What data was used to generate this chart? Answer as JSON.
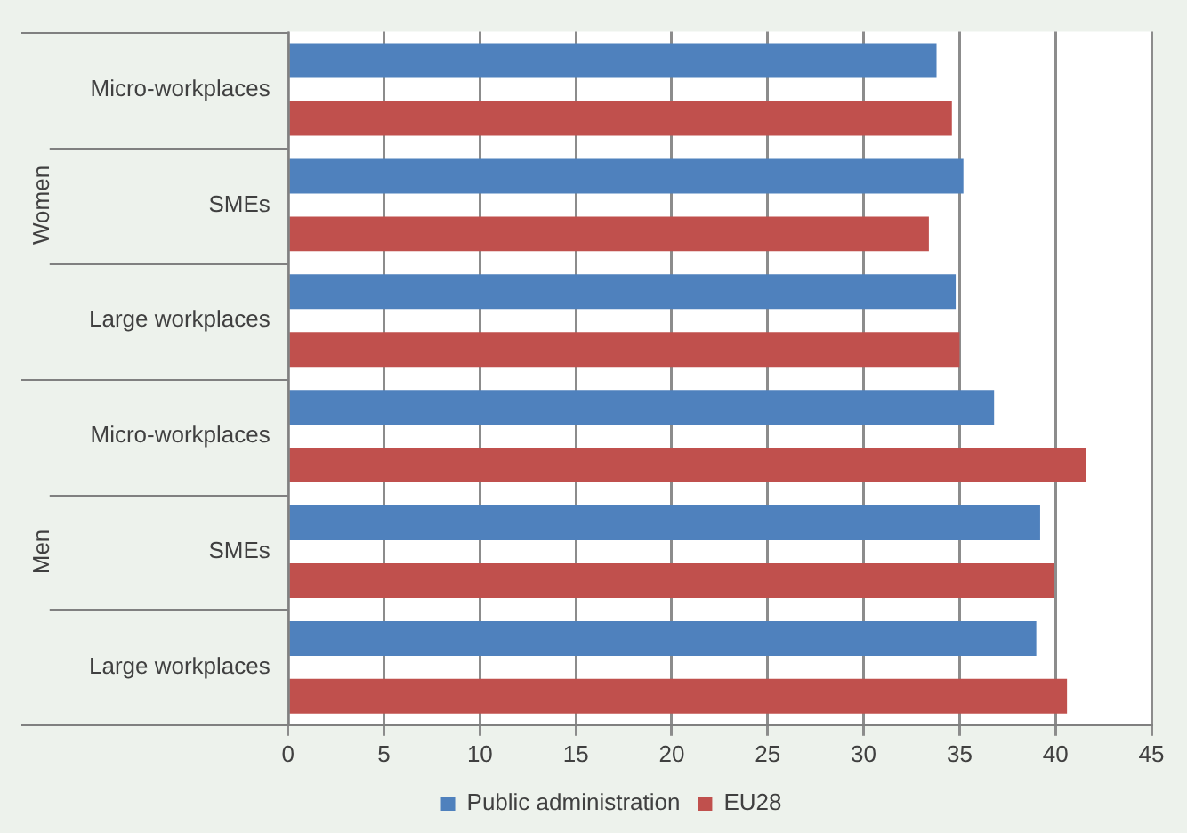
{
  "chart_data": {
    "type": "bar",
    "orientation": "horizontal",
    "categories": [
      "Micro-workplaces",
      "SMEs",
      "Large workplaces",
      "Micro-workplaces",
      "SMEs",
      "Large workplaces"
    ],
    "series": [
      {
        "name": "Public administration",
        "color": "#4f81bd",
        "values": [
          33.8,
          35.2,
          34.8,
          36.8,
          39.2,
          39.0
        ]
      },
      {
        "name": "EU28",
        "color": "#c0504d",
        "values": [
          34.6,
          33.4,
          35.0,
          41.6,
          39.9,
          40.6
        ]
      }
    ],
    "xlim": [
      0,
      45
    ],
    "xticks": [
      0,
      5,
      10,
      15,
      20,
      25,
      30,
      35,
      40,
      45
    ],
    "grid": "x",
    "legend": "bottom",
    "annotations": [
      "Women",
      "Men"
    ]
  }
}
